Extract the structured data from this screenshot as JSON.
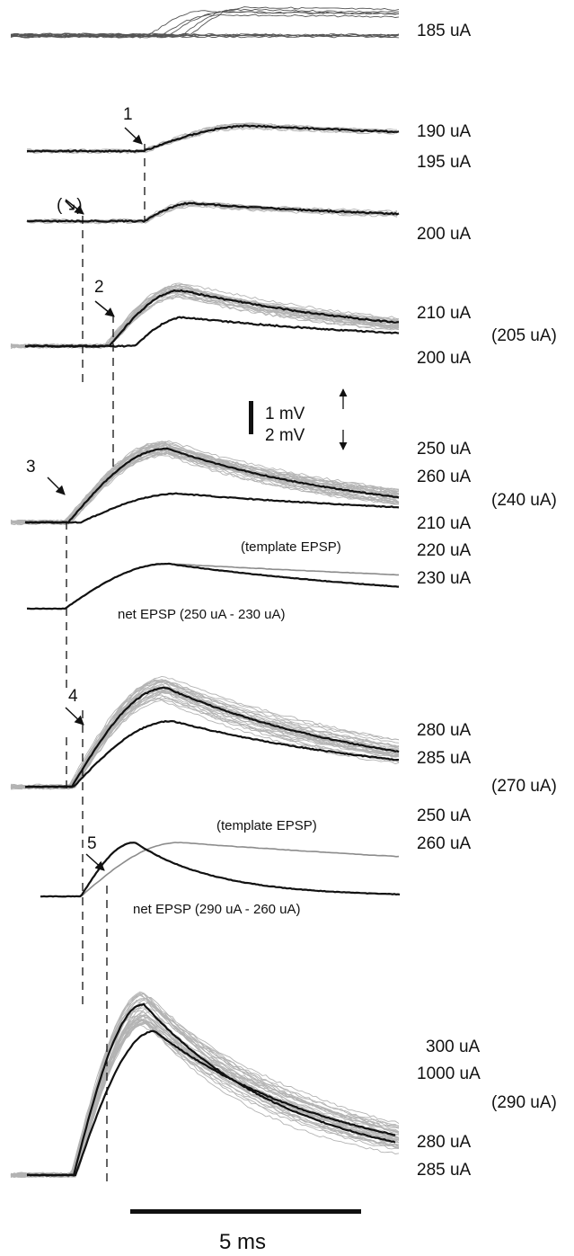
{
  "chart_data": {
    "type": "line",
    "colors": {
      "mean_trace": "#111111",
      "trial_traces": "#b3b3b3",
      "template_trace": "#8c8c8c"
    },
    "onset_markers": [
      "1",
      "(↘)",
      "2",
      "3",
      "4",
      "5"
    ],
    "scale_bars": {
      "vertical_small": "1 mV",
      "vertical_large": "2 mV",
      "horizontal": "5 ms"
    },
    "panels": [
      {
        "name": "raw",
        "intensity_labels": [
          "185 uA"
        ]
      },
      {
        "name": "p1",
        "marker": "1",
        "intensity_labels": [
          "190 uA",
          "195 uA"
        ]
      },
      {
        "name": "p1b",
        "marker": "(↘)",
        "intensity_labels": [
          "200 uA"
        ]
      },
      {
        "name": "p2",
        "marker": "2",
        "intensity_labels": [
          "210 uA",
          "200 uA"
        ],
        "group_label": "(205 uA)"
      },
      {
        "name": "p3",
        "marker": "3",
        "intensity_labels": [
          "250 uA",
          "260 uA",
          "210 uA"
        ],
        "group_label": "(240 uA)"
      },
      {
        "name": "net3",
        "template_label": "(template EPSP)",
        "intensity_labels": [
          "220 uA",
          "230 uA"
        ],
        "net_label": "net EPSP (250 uA - 230 uA)"
      },
      {
        "name": "p4",
        "marker": "4",
        "intensity_labels": [
          "280 uA",
          "285 uA",
          "250 uA"
        ],
        "group_label": "(270 uA)"
      },
      {
        "name": "net4",
        "template_label": "(template EPSP)",
        "intensity_labels": [
          "260 uA"
        ],
        "net_label": "net EPSP (290 uA - 260 uA)"
      },
      {
        "name": "p5",
        "marker": "5",
        "intensity_labels": [
          "300 uA",
          "1000 uA",
          "280 uA",
          "285 uA"
        ],
        "group_label": "(290 uA)"
      }
    ]
  }
}
